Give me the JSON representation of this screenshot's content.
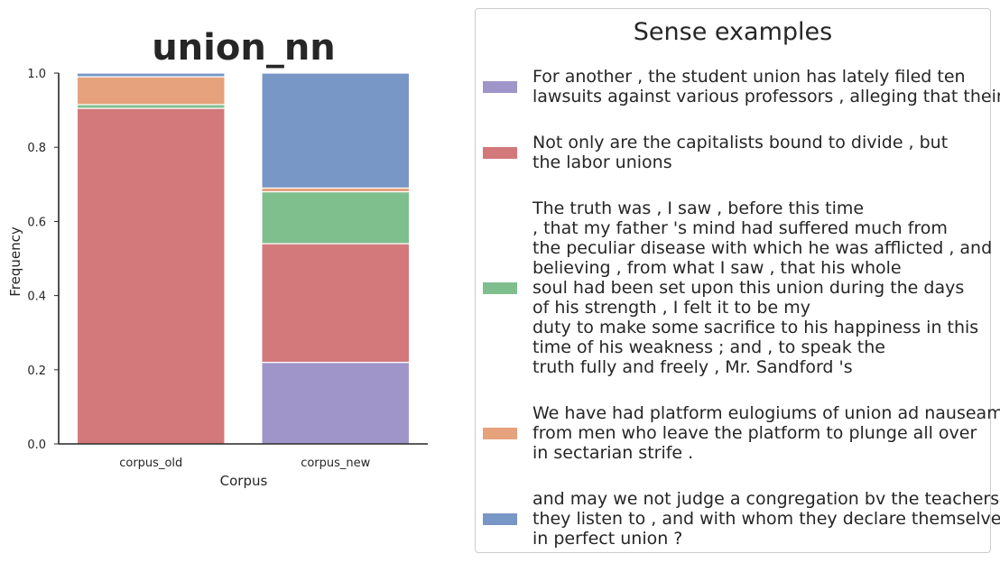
{
  "chart_data": {
    "type": "bar",
    "stacked": true,
    "title": "union_nn",
    "xlabel": "Corpus",
    "ylabel": "Frequency",
    "ylim": [
      0,
      1.0
    ],
    "yticks": [
      "0.0",
      "0.2",
      "0.4",
      "0.6",
      "0.8",
      "1.0"
    ],
    "categories": [
      "corpus_old",
      "corpus_new"
    ],
    "series": [
      {
        "key": "s1",
        "color": "#9f95c9",
        "values": [
          0.0,
          0.22
        ]
      },
      {
        "key": "s2",
        "color": "#d3787b",
        "values": [
          0.905,
          0.32
        ]
      },
      {
        "key": "s3",
        "color": "#7fbe8d",
        "values": [
          0.01,
          0.14
        ]
      },
      {
        "key": "s4",
        "color": "#e5a27c",
        "values": [
          0.075,
          0.01
        ]
      },
      {
        "key": "s5",
        "color": "#7896c6",
        "values": [
          0.01,
          0.31
        ]
      }
    ],
    "grid": false,
    "legend_placement": "right"
  },
  "legend": {
    "title": "Sense examples",
    "entries": [
      {
        "lines": [
          "For another , the student union has lately filed ten",
          "lawsuits against various professors , alleging that their"
        ]
      },
      {
        "lines": [
          "Not only are the capitalists bound to divide , but",
          "the labor unions"
        ]
      },
      {
        "lines": [
          "The truth was , I saw , before this time",
          ", that my father 's mind had suffered much from",
          "the peculiar disease with which he was afflicted , and",
          "believing , from what I saw , that his whole",
          "soul had been set upon this union during the days",
          "of his strength , I felt it to be my",
          "duty to make some sacrifice to his happiness in this",
          "time of his weakness ; and , to speak the",
          "truth fully and freely , Mr. Sandford 's"
        ]
      },
      {
        "lines": [
          "We have had platform eulogiums of union ad nauseam ,",
          "from men who leave the platform to plunge all over",
          "in sectarian strife ."
        ]
      },
      {
        "lines": [
          "and may we not judge a congregation bv the teachers",
          "they listen to , and with whom they declare themselves",
          "in perfect union ?"
        ]
      }
    ]
  }
}
